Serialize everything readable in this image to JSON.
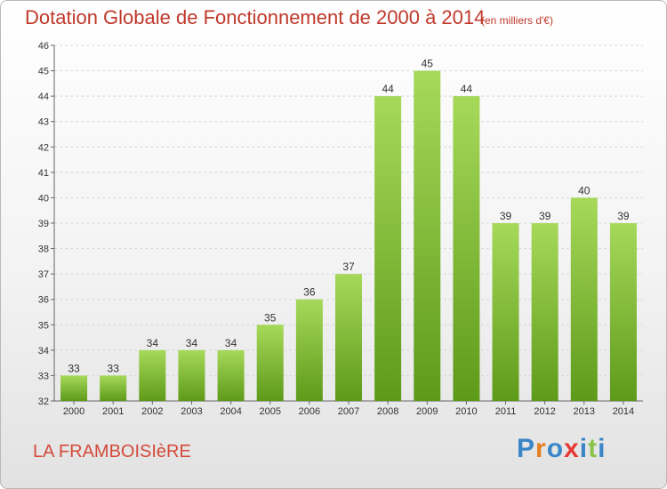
{
  "title": "Dotation Globale de Fonctionnement de 2000 à 2014",
  "unit_note": "(en milliers d'€)",
  "commune": "LA FRAMBOISIèRE",
  "brand": {
    "letters": [
      "P",
      "r",
      "o",
      "x",
      "i",
      "t",
      "i"
    ],
    "colors": [
      "#3a86c8",
      "#e67e22",
      "#3a86c8",
      "#e53935",
      "#3a86c8",
      "#8bc34a",
      "#3a86c8"
    ]
  },
  "colors": {
    "bar_top": "#a6d95a",
    "bar_bottom": "#5e9a1a",
    "title": "#c0392b"
  },
  "chart_data": {
    "type": "bar",
    "title": "Dotation Globale de Fonctionnement de 2000 à 2014",
    "xlabel": "",
    "ylabel": "",
    "categories": [
      "2000",
      "2001",
      "2002",
      "2003",
      "2004",
      "2005",
      "2006",
      "2007",
      "2008",
      "2009",
      "2010",
      "2011",
      "2012",
      "2013",
      "2014"
    ],
    "values": [
      33,
      33,
      34,
      34,
      34,
      35,
      36,
      37,
      44,
      45,
      44,
      39,
      39,
      40,
      39
    ],
    "ylim": [
      32,
      46
    ],
    "yticks": [
      32,
      33,
      34,
      35,
      36,
      37,
      38,
      39,
      40,
      41,
      42,
      43,
      44,
      45,
      46
    ],
    "grid": true,
    "data_labels": true
  }
}
